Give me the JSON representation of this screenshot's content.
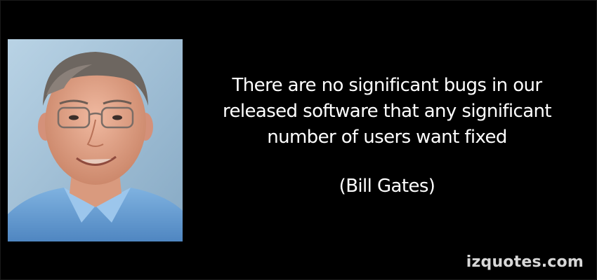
{
  "quote": {
    "text": "There are no significant bugs in our released software that any significant number of users want fixed",
    "author": "(Bill Gates)"
  },
  "watermark": "izquotes.com",
  "colors": {
    "background": "#000000",
    "text": "#ffffff",
    "watermark": "#d8d8d8",
    "photo_background": "#a9c7dc"
  },
  "photo": {
    "icon": "portrait-photo-icon"
  }
}
